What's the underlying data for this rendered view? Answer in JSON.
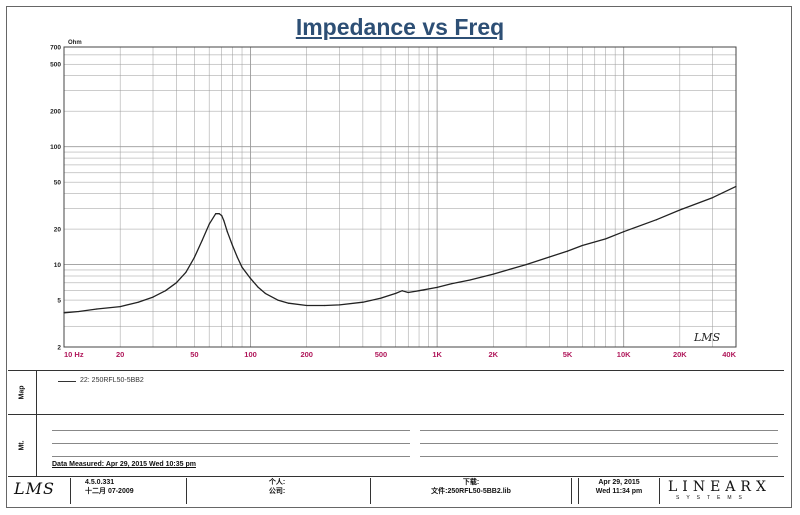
{
  "title": "Impedance vs Freq",
  "chart_data": {
    "type": "line",
    "title": "Impedance vs Freq",
    "ylabel": "Ohm",
    "xscale": "log",
    "yscale": "log",
    "xlim": [
      10,
      40000
    ],
    "ylim": [
      2,
      700
    ],
    "grid": true,
    "x_ticks": [
      {
        "value": 10,
        "label": "10 Hz"
      },
      {
        "value": 20,
        "label": "20"
      },
      {
        "value": 50,
        "label": "50"
      },
      {
        "value": 100,
        "label": "100"
      },
      {
        "value": 200,
        "label": "200"
      },
      {
        "value": 500,
        "label": "500"
      },
      {
        "value": 1000,
        "label": "1K"
      },
      {
        "value": 2000,
        "label": "2K"
      },
      {
        "value": 5000,
        "label": "5K"
      },
      {
        "value": 10000,
        "label": "10K"
      },
      {
        "value": 20000,
        "label": "20K"
      },
      {
        "value": 40000,
        "label": "40K"
      }
    ],
    "y_ticks": [
      {
        "value": 2,
        "label": "2"
      },
      {
        "value": 5,
        "label": "5"
      },
      {
        "value": 10,
        "label": "10"
      },
      {
        "value": 20,
        "label": "20"
      },
      {
        "value": 50,
        "label": "50"
      },
      {
        "value": 100,
        "label": "100"
      },
      {
        "value": 200,
        "label": "200"
      },
      {
        "value": 500,
        "label": "500"
      },
      {
        "value": 700,
        "label": "700"
      }
    ],
    "series": [
      {
        "name": "22: 250RFL50-5BB2",
        "color": "#222222",
        "x": [
          10,
          12,
          15,
          20,
          25,
          30,
          35,
          40,
          45,
          50,
          55,
          60,
          65,
          68,
          70,
          72,
          75,
          80,
          85,
          90,
          100,
          110,
          120,
          140,
          160,
          200,
          250,
          300,
          400,
          500,
          600,
          650,
          700,
          800,
          1000,
          1200,
          1500,
          2000,
          3000,
          4000,
          5000,
          6000,
          8000,
          10000,
          15000,
          20000,
          30000,
          40000
        ],
        "y": [
          3.9,
          4.0,
          4.2,
          4.4,
          4.8,
          5.3,
          6.0,
          7.0,
          8.6,
          11.5,
          16,
          22,
          27,
          27,
          26,
          23.5,
          19,
          14.5,
          11.5,
          9.5,
          7.6,
          6.4,
          5.7,
          5.0,
          4.7,
          4.5,
          4.5,
          4.55,
          4.8,
          5.2,
          5.7,
          6.0,
          5.8,
          6.0,
          6.4,
          6.9,
          7.4,
          8.3,
          10.0,
          11.6,
          13.0,
          14.5,
          16.5,
          19,
          24,
          29,
          37,
          46
        ]
      }
    ]
  },
  "legend": {
    "entry": "22: 250RFL50-5BB2"
  },
  "side_labels": {
    "legend_panel": "Map",
    "notes_panel": "Mt."
  },
  "notes": {
    "measured": "Data Measured: Apr 29, 2015  Wed 10:35 pm"
  },
  "footer": {
    "logo": "LMS",
    "version": "4.5.0.331",
    "version_date": "十二月 07-2009",
    "person_label": "个人:",
    "company_label": "公司:",
    "download_label": "下载:",
    "file_label": "文件:250RFL50-5BB2.lib",
    "date": "Apr 29, 2015",
    "time": "Wed 11:34 pm",
    "brand": "LINEARX",
    "brand_sub": "SYSTEMS"
  },
  "plot_logo": "LMS",
  "colors": {
    "title": "#2d4f75",
    "tick_x": "#b0175a",
    "grid": "#9a9a9a",
    "curve": "#222222"
  }
}
